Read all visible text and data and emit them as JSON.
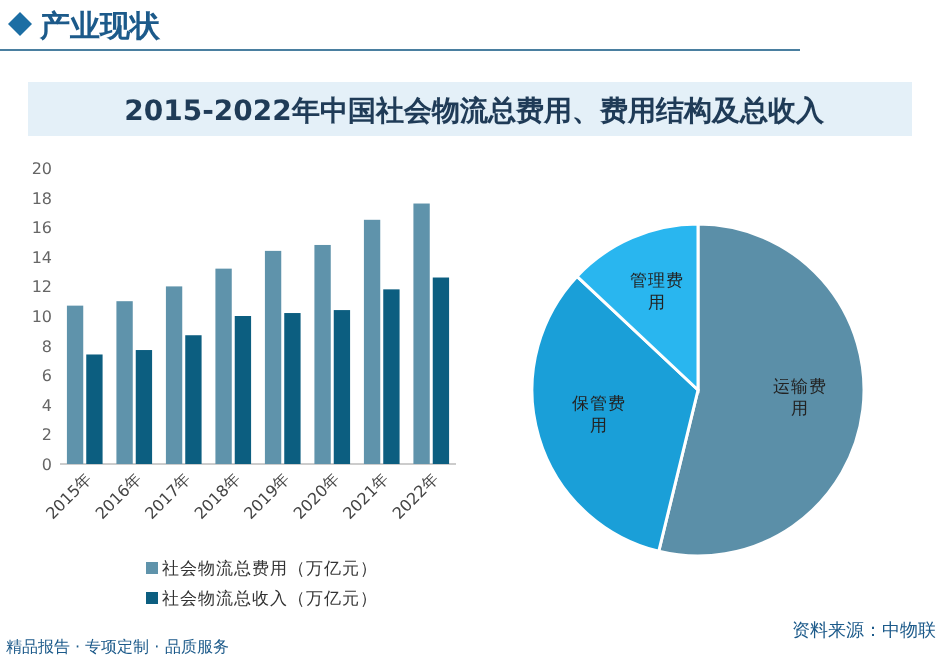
{
  "chart_data": [
    {
      "type": "bar",
      "title": "2015-2022年中国社会物流总费用、费用结构及总收入",
      "categories": [
        "2015年",
        "2016年",
        "2017年",
        "2018年",
        "2019年",
        "2020年",
        "2021年",
        "2022年"
      ],
      "series": [
        {
          "name": "社会物流总费用（万亿元）",
          "color": "#5f93ab",
          "values": [
            10.7,
            11.0,
            12.0,
            13.2,
            14.4,
            14.8,
            16.5,
            17.6
          ]
        },
        {
          "name": "社会物流总收入（万亿元）",
          "color": "#0c5e80",
          "values": [
            7.4,
            7.7,
            8.7,
            10.0,
            10.2,
            10.4,
            11.8,
            12.6
          ]
        }
      ],
      "ylim": [
        0,
        20
      ],
      "yticks": [
        0,
        2,
        4,
        6,
        8,
        10,
        12,
        14,
        16,
        18,
        20
      ],
      "grid": false,
      "legend": "bottom",
      "annotations": [
        "产业现状",
        "精品报告 · 专项定制 · 品质服务"
      ]
    },
    {
      "type": "pie",
      "categories": [
        "运输费用",
        "保管费用",
        "管理费用"
      ],
      "values": [
        53.8,
        33.2,
        13.0
      ],
      "colors": [
        "#5b8fa8",
        "#1a9fd8",
        "#29b6ef"
      ],
      "legend": false,
      "annotations": [
        "资料来源：中物联"
      ]
    }
  ]
}
